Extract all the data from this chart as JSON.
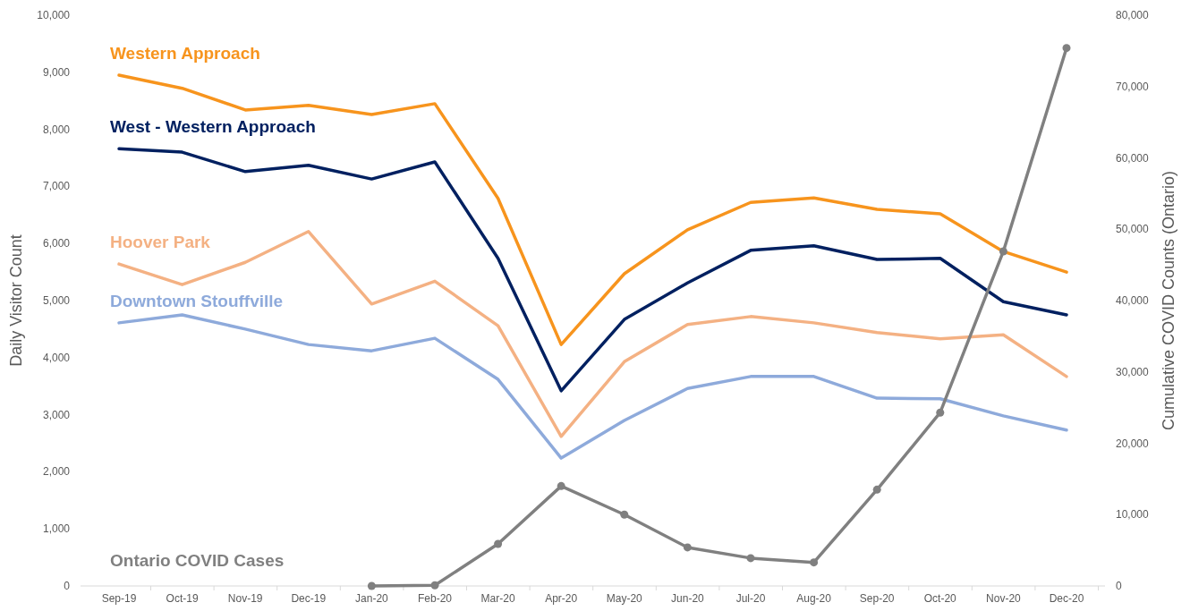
{
  "chart_data": {
    "type": "line",
    "ylabel": "Daily Visitor Count",
    "y2label": "Cumulative COVID Counts (Ontario)",
    "categories": [
      "Sep-19",
      "Oct-19",
      "Nov-19",
      "Dec-19",
      "Jan-20",
      "Feb-20",
      "Mar-20",
      "Apr-20",
      "May-20",
      "Jun-20",
      "Jul-20",
      "Aug-20",
      "Sep-20",
      "Oct-20",
      "Nov-20",
      "Dec-20"
    ],
    "ylim": [
      0,
      10000
    ],
    "yticks": [
      {
        "value": 0,
        "label": "0"
      },
      {
        "value": 1000,
        "label": "1,000"
      },
      {
        "value": 2000,
        "label": "2,000"
      },
      {
        "value": 3000,
        "label": "3,000"
      },
      {
        "value": 4000,
        "label": "4,000"
      },
      {
        "value": 5000,
        "label": "5,000"
      },
      {
        "value": 6000,
        "label": "6,000"
      },
      {
        "value": 7000,
        "label": "7,000"
      },
      {
        "value": 8000,
        "label": "8,000"
      },
      {
        "value": 9000,
        "label": "9,000"
      },
      {
        "value": 10000,
        "label": "10,000"
      }
    ],
    "y2lim": [
      0,
      80000
    ],
    "y2ticks": [
      {
        "value": 0,
        "label": "0"
      },
      {
        "value": 10000,
        "label": "10,000"
      },
      {
        "value": 20000,
        "label": "20,000"
      },
      {
        "value": 30000,
        "label": "30,000"
      },
      {
        "value": 40000,
        "label": "40,000"
      },
      {
        "value": 50000,
        "label": "50,000"
      },
      {
        "value": 60000,
        "label": "60,000"
      },
      {
        "value": 70000,
        "label": "70,000"
      },
      {
        "value": 80000,
        "label": "80,000"
      }
    ],
    "grid": false,
    "series": [
      {
        "name": "Western Approach",
        "color": "#f7941d",
        "marker": "none",
        "values": [
          8950,
          8720,
          8340,
          8420,
          8260,
          8450,
          6790,
          4230,
          5470,
          6240,
          6720,
          6800,
          6600,
          6520,
          5860,
          5500
        ]
      },
      {
        "name": "West - Western Approach",
        "color": "#002060",
        "marker": "none",
        "values": [
          7660,
          7600,
          7260,
          7370,
          7130,
          7430,
          5740,
          3420,
          4670,
          5310,
          5880,
          5960,
          5720,
          5740,
          4980,
          4750
        ]
      },
      {
        "name": "Hoover Park",
        "color": "#f4b183",
        "marker": "none",
        "values": [
          5640,
          5280,
          5670,
          6210,
          4940,
          5340,
          4560,
          2620,
          3930,
          4580,
          4720,
          4610,
          4440,
          4330,
          4400,
          3670
        ]
      },
      {
        "name": "Downtown Stouffville",
        "color": "#8eaadb",
        "marker": "none",
        "values": [
          4610,
          4750,
          4500,
          4230,
          4120,
          4340,
          3620,
          2240,
          2900,
          3460,
          3670,
          3670,
          3290,
          3280,
          2980,
          2730
        ]
      },
      {
        "name": "Ontario COVID Cases",
        "color": "#808080",
        "marker": "circle",
        "axis": "y2",
        "values": [
          null,
          null,
          null,
          null,
          0,
          100,
          5900,
          14000,
          10000,
          5400,
          3900,
          3300,
          13500,
          24300,
          46900,
          75400
        ]
      }
    ]
  }
}
